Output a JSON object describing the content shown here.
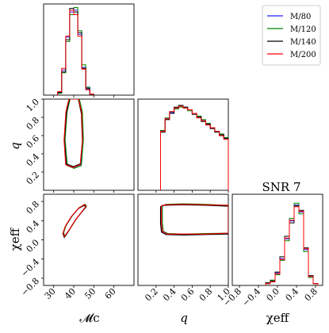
{
  "chart_data": {
    "type": "corner",
    "title": "SNR 7",
    "legend": {
      "placement": "top-right",
      "entries": [
        "M/80",
        "M/120",
        "M/140",
        "M/200"
      ]
    },
    "series": [
      {
        "name": "M/80",
        "color": "#1f1fff"
      },
      {
        "name": "M/120",
        "color": "#008000"
      },
      {
        "name": "M/140",
        "color": "#000000"
      },
      {
        "name": "M/200",
        "color": "#ff0000"
      }
    ],
    "parameters": [
      {
        "label": "𝓜c",
        "range": [
          25,
          70
        ],
        "ticks": [
          30,
          40,
          50,
          60
        ],
        "tick_labels": [
          "30",
          "40",
          "50",
          "60"
        ]
      },
      {
        "label": "q",
        "range": [
          0.0,
          1.0
        ],
        "ticks": [
          0.2,
          0.4,
          0.6,
          0.8,
          1.0
        ],
        "tick_labels": [
          "0.2",
          "0.4",
          "0.6",
          "0.8",
          "1.0"
        ]
      },
      {
        "label": "χeff",
        "range": [
          -0.95,
          0.95
        ],
        "ticks": [
          -0.8,
          -0.4,
          0.0,
          0.4,
          0.8
        ],
        "tick_labels": [
          "−0.8",
          "−0.4",
          "0.0",
          "0.4",
          "0.8"
        ]
      }
    ],
    "y_axis_ticks": {
      "q": {
        "ticks": [
          0.2,
          0.4,
          0.6,
          0.8,
          1.0
        ],
        "tick_labels": [
          "0.2",
          "0.4",
          "0.6",
          "0.8",
          "1.0"
        ]
      },
      "chi_eff": {
        "ticks": [
          -0.8,
          -0.4,
          0.0,
          0.4,
          0.8
        ],
        "tick_labels": [
          "−0.8",
          "−0.4",
          "0.0",
          "0.4",
          "0.8"
        ]
      }
    },
    "histograms": {
      "mc": {
        "bin_edges": [
          32,
          34,
          36,
          38,
          40,
          42,
          44,
          46,
          48,
          50
        ],
        "series": [
          [
            0.03,
            0.28,
            0.65,
            0.93,
            0.95,
            0.68,
            0.31,
            0.08,
            0.01
          ],
          [
            0.02,
            0.25,
            0.6,
            0.9,
            0.98,
            0.72,
            0.34,
            0.09,
            0.01
          ],
          [
            0.03,
            0.26,
            0.62,
            0.97,
            0.93,
            0.7,
            0.3,
            0.07,
            0.01
          ],
          [
            0.04,
            0.3,
            0.66,
            0.95,
            0.9,
            0.66,
            0.29,
            0.06,
            0.01
          ]
        ]
      },
      "q": {
        "bin_edges": [
          0.25,
          0.3,
          0.35,
          0.4,
          0.45,
          0.5,
          0.55,
          0.6,
          0.65,
          0.7,
          0.75,
          0.8,
          0.85,
          0.9,
          0.95,
          1.0
        ],
        "series": [
          [
            0.66,
            0.8,
            0.87,
            0.92,
            0.94,
            0.93,
            0.9,
            0.86,
            0.82,
            0.78,
            0.74,
            0.7,
            0.66,
            0.62,
            0.58
          ],
          [
            0.67,
            0.81,
            0.88,
            0.91,
            0.93,
            0.92,
            0.89,
            0.86,
            0.83,
            0.79,
            0.75,
            0.7,
            0.66,
            0.63,
            0.59
          ],
          [
            0.65,
            0.79,
            0.86,
            0.93,
            0.95,
            0.93,
            0.9,
            0.85,
            0.82,
            0.77,
            0.74,
            0.69,
            0.65,
            0.62,
            0.58
          ],
          [
            0.66,
            0.8,
            0.88,
            0.92,
            0.94,
            0.92,
            0.9,
            0.86,
            0.81,
            0.78,
            0.73,
            0.7,
            0.66,
            0.61,
            0.57
          ]
        ]
      },
      "chi_eff": {
        "bin_edges": [
          -0.25,
          -0.15,
          -0.05,
          0.05,
          0.15,
          0.25,
          0.35,
          0.45,
          0.55,
          0.65,
          0.75,
          0.85
        ],
        "series": [
          [
            0.02,
            0.05,
            0.14,
            0.3,
            0.52,
            0.72,
            0.9,
            0.82,
            0.4,
            0.1,
            0.02
          ],
          [
            0.02,
            0.06,
            0.12,
            0.28,
            0.5,
            0.75,
            0.92,
            0.8,
            0.38,
            0.09,
            0.02
          ],
          [
            0.03,
            0.05,
            0.15,
            0.32,
            0.55,
            0.7,
            0.89,
            0.84,
            0.42,
            0.11,
            0.02
          ],
          [
            0.02,
            0.04,
            0.13,
            0.29,
            0.53,
            0.73,
            0.88,
            0.83,
            0.41,
            0.1,
            0.02
          ]
        ]
      }
    },
    "contours": {
      "mc_q": [
        [
          [
            36.5,
            0.28
          ],
          [
            40.0,
            0.25
          ],
          [
            43.5,
            0.28
          ],
          [
            44.5,
            0.55
          ],
          [
            44.0,
            0.85
          ],
          [
            42.5,
            1.0
          ],
          [
            40.5,
            1.0
          ],
          [
            38.0,
            1.0
          ],
          [
            36.5,
            0.85
          ],
          [
            35.5,
            0.55
          ],
          [
            36.5,
            0.28
          ]
        ],
        [
          [
            36.8,
            0.27
          ],
          [
            40.2,
            0.24
          ],
          [
            43.8,
            0.27
          ],
          [
            44.8,
            0.56
          ],
          [
            44.3,
            0.86
          ],
          [
            42.8,
            1.0
          ],
          [
            40.5,
            1.0
          ],
          [
            38.2,
            1.0
          ],
          [
            36.7,
            0.86
          ],
          [
            35.7,
            0.56
          ],
          [
            36.8,
            0.27
          ]
        ],
        [
          [
            36.3,
            0.29
          ],
          [
            39.8,
            0.26
          ],
          [
            43.3,
            0.29
          ],
          [
            44.3,
            0.54
          ],
          [
            43.8,
            0.84
          ],
          [
            42.3,
            1.0
          ],
          [
            40.3,
            1.0
          ],
          [
            37.8,
            1.0
          ],
          [
            36.3,
            0.84
          ],
          [
            35.3,
            0.54
          ],
          [
            36.3,
            0.29
          ]
        ],
        [
          [
            36.0,
            0.28
          ],
          [
            39.7,
            0.25
          ],
          [
            43.2,
            0.28
          ],
          [
            44.4,
            0.55
          ],
          [
            43.9,
            0.86
          ],
          [
            42.4,
            1.0
          ],
          [
            40.2,
            1.0
          ],
          [
            37.6,
            1.0
          ],
          [
            36.1,
            0.86
          ],
          [
            35.2,
            0.55
          ],
          [
            36.0,
            0.28
          ]
        ]
      ],
      "mc_chi": [
        [
          [
            35.5,
            0.06
          ],
          [
            38.0,
            0.22
          ],
          [
            41.0,
            0.42
          ],
          [
            44.0,
            0.58
          ],
          [
            46.2,
            0.69
          ],
          [
            45.5,
            0.73
          ],
          [
            42.5,
            0.66
          ],
          [
            39.0,
            0.49
          ],
          [
            36.0,
            0.29
          ],
          [
            34.8,
            0.14
          ],
          [
            35.5,
            0.06
          ]
        ],
        [
          [
            35.7,
            0.07
          ],
          [
            38.2,
            0.23
          ],
          [
            41.2,
            0.43
          ],
          [
            44.2,
            0.59
          ],
          [
            46.4,
            0.7
          ],
          [
            45.7,
            0.74
          ],
          [
            42.7,
            0.67
          ],
          [
            39.2,
            0.5
          ],
          [
            36.2,
            0.3
          ],
          [
            35.0,
            0.15
          ],
          [
            35.7,
            0.07
          ]
        ],
        [
          [
            35.3,
            0.05
          ],
          [
            37.8,
            0.21
          ],
          [
            40.8,
            0.41
          ],
          [
            43.8,
            0.57
          ],
          [
            46.0,
            0.68
          ],
          [
            45.3,
            0.72
          ],
          [
            42.3,
            0.65
          ],
          [
            38.8,
            0.48
          ],
          [
            35.8,
            0.28
          ],
          [
            34.6,
            0.13
          ],
          [
            35.3,
            0.05
          ]
        ],
        [
          [
            35.4,
            0.07
          ],
          [
            37.9,
            0.22
          ],
          [
            40.9,
            0.42
          ],
          [
            43.9,
            0.58
          ],
          [
            46.1,
            0.7
          ],
          [
            45.4,
            0.74
          ],
          [
            42.4,
            0.66
          ],
          [
            38.9,
            0.49
          ],
          [
            35.9,
            0.29
          ],
          [
            34.7,
            0.15
          ],
          [
            35.4,
            0.07
          ]
        ]
      ],
      "q_chi": [
        [
          [
            0.26,
            0.7
          ],
          [
            0.3,
            0.73
          ],
          [
            0.5,
            0.74
          ],
          [
            0.75,
            0.73
          ],
          [
            1.0,
            0.71
          ],
          [
            1.0,
            0.13
          ],
          [
            0.75,
            0.12
          ],
          [
            0.5,
            0.11
          ],
          [
            0.32,
            0.12
          ],
          [
            0.27,
            0.17
          ],
          [
            0.26,
            0.35
          ],
          [
            0.26,
            0.7
          ]
        ],
        [
          [
            0.27,
            0.71
          ],
          [
            0.31,
            0.74
          ],
          [
            0.5,
            0.75
          ],
          [
            0.75,
            0.74
          ],
          [
            1.0,
            0.72
          ],
          [
            1.0,
            0.14
          ],
          [
            0.75,
            0.13
          ],
          [
            0.5,
            0.12
          ],
          [
            0.33,
            0.13
          ],
          [
            0.28,
            0.18
          ],
          [
            0.27,
            0.36
          ],
          [
            0.27,
            0.71
          ]
        ],
        [
          [
            0.25,
            0.69
          ],
          [
            0.29,
            0.72
          ],
          [
            0.5,
            0.73
          ],
          [
            0.75,
            0.72
          ],
          [
            1.0,
            0.7
          ],
          [
            1.0,
            0.12
          ],
          [
            0.75,
            0.11
          ],
          [
            0.5,
            0.1
          ],
          [
            0.31,
            0.11
          ],
          [
            0.26,
            0.16
          ],
          [
            0.25,
            0.34
          ],
          [
            0.25,
            0.69
          ]
        ],
        [
          [
            0.26,
            0.71
          ],
          [
            0.3,
            0.73
          ],
          [
            0.5,
            0.74
          ],
          [
            0.75,
            0.73
          ],
          [
            1.0,
            0.72
          ],
          [
            1.0,
            0.14
          ],
          [
            0.75,
            0.12
          ],
          [
            0.5,
            0.12
          ],
          [
            0.32,
            0.12
          ],
          [
            0.27,
            0.18
          ],
          [
            0.26,
            0.36
          ],
          [
            0.26,
            0.71
          ]
        ]
      ]
    }
  }
}
